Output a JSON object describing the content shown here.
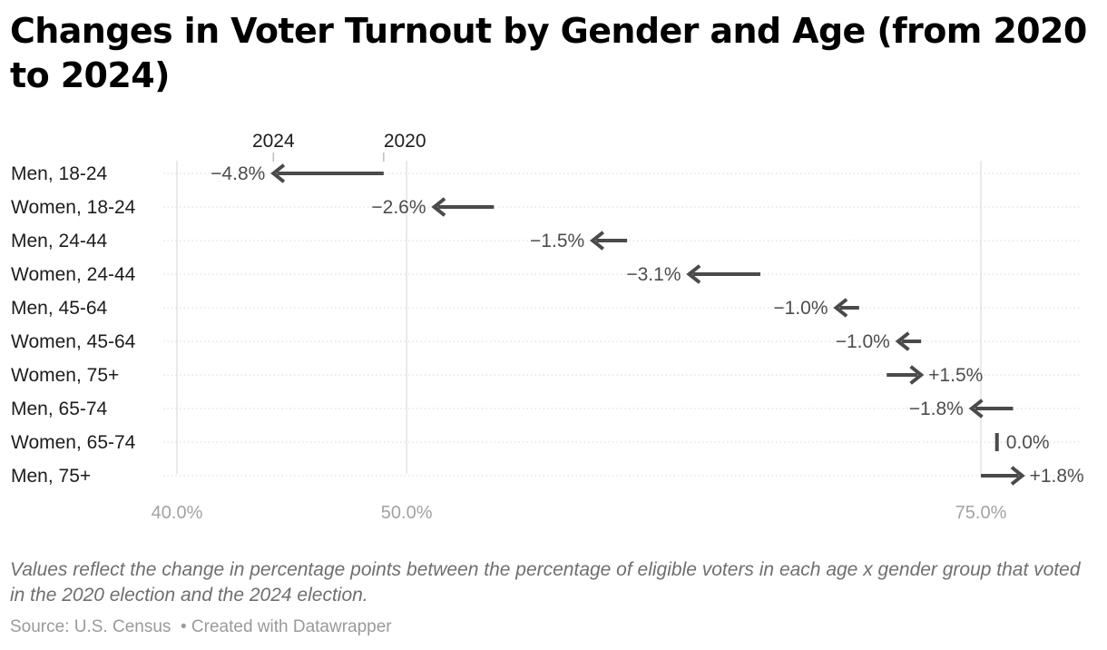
{
  "title": "Changes in Voter Turnout by Gender and Age (from 2020 to 2024)",
  "notes": "Values reflect the change in percentage points between the percentage of eligible voters in each age x gender group that voted in the 2020 election and the 2024 election.",
  "footer": {
    "source": "Source: U.S. Census",
    "separator": "•",
    "credit": "Created with Datawrapper"
  },
  "chart_data": {
    "type": "arrow-dot-plot",
    "title": "Changes in Voter Turnout by Gender and Age (from 2020 to 2024)",
    "x_ticks": [
      40,
      50,
      75
    ],
    "x_tick_labels": [
      "40.0%",
      "50.0%",
      "75.0%"
    ],
    "xlim": [
      40,
      79
    ],
    "legend": {
      "from_label": "2020",
      "to_label": "2024",
      "placement": "top, above first row"
    },
    "grid": "vertical lines at ticks, dotted horizontal row guides",
    "arrow_color": "#4a4a4a",
    "rows": [
      {
        "label": "Men, 18-24",
        "y2020": 49.0,
        "y2024": 44.2,
        "change": "−4.8%"
      },
      {
        "label": "Women, 18-24",
        "y2020": 53.8,
        "y2024": 51.2,
        "change": "−2.6%"
      },
      {
        "label": "Men, 24-44",
        "y2020": 59.6,
        "y2024": 58.1,
        "change": "−1.5%"
      },
      {
        "label": "Women, 24-44",
        "y2020": 65.4,
        "y2024": 62.3,
        "change": "−3.1%"
      },
      {
        "label": "Men, 45-64",
        "y2020": 69.7,
        "y2024": 68.7,
        "change": "−1.0%"
      },
      {
        "label": "Women, 45-64",
        "y2020": 72.4,
        "y2024": 71.4,
        "change": "−1.0%"
      },
      {
        "label": "Women, 75+",
        "y2020": 70.9,
        "y2024": 72.4,
        "change": "+1.5%"
      },
      {
        "label": "Men, 65-74",
        "y2020": 76.4,
        "y2024": 74.6,
        "change": "−1.8%"
      },
      {
        "label": "Women, 65-74",
        "y2020": 75.7,
        "y2024": 75.7,
        "change": "0.0%"
      },
      {
        "label": "Men, 75+",
        "y2020": 75.0,
        "y2024": 76.8,
        "change": "+1.8%"
      }
    ]
  }
}
